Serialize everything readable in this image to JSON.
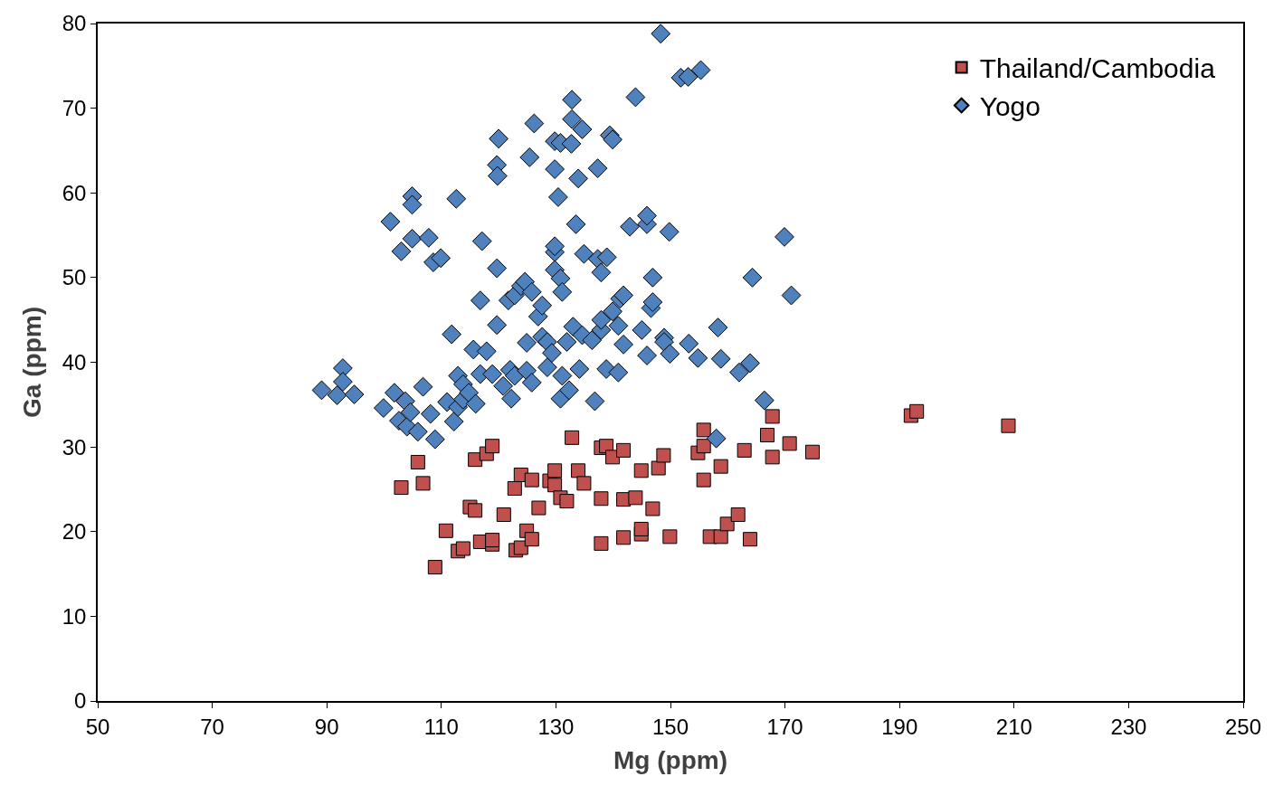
{
  "chart_data": {
    "type": "scatter",
    "xlabel": "Mg (ppm)",
    "ylabel": "Ga (ppm)",
    "xlim": [
      50,
      250
    ],
    "xticks": [
      50,
      70,
      90,
      110,
      130,
      150,
      170,
      190,
      210,
      230,
      250
    ],
    "ylim": [
      0,
      80
    ],
    "yticks": [
      0,
      10,
      20,
      30,
      40,
      50,
      60,
      70,
      80
    ],
    "legend": "top right",
    "series": [
      {
        "name": "Thailand/Cambodia",
        "color": "#c0504d",
        "marker": "square",
        "x": [
          103.0,
          105.9,
          106.8,
          108.9,
          110.8,
          112.9,
          113.8,
          115.0,
          115.9,
          115.9,
          116.8,
          117.9,
          118.9,
          118.9,
          118.9,
          120.9,
          122.8,
          123.0,
          123.9,
          123.9,
          124.9,
          125.8,
          125.8,
          127.0,
          128.9,
          129.8,
          129.8,
          130.8,
          131.9,
          132.8,
          133.9,
          134.9,
          137.9,
          138.8,
          137.9,
          137.9,
          139.9,
          141.8,
          141.8,
          141.8,
          143.9,
          144.9,
          144.9,
          144.9,
          146.9,
          147.9,
          148.8,
          149.9,
          154.8,
          155.8,
          155.8,
          155.8,
          156.9,
          158.8,
          158.8,
          159.9,
          161.8,
          162.9,
          163.9,
          166.9,
          167.8,
          167.8,
          170.8,
          174.8,
          192.0,
          193.0,
          209.0
        ],
        "values": [
          25.2,
          28.2,
          25.7,
          15.8,
          20.1,
          17.7,
          18.0,
          22.9,
          22.5,
          28.5,
          18.8,
          29.2,
          30.1,
          18.5,
          19.0,
          22.0,
          25.1,
          17.8,
          26.7,
          18.1,
          20.1,
          19.1,
          26.1,
          22.8,
          26.0,
          27.2,
          25.5,
          24.0,
          23.6,
          31.1,
          27.2,
          25.7,
          29.9,
          30.1,
          18.6,
          23.9,
          28.8,
          29.6,
          19.3,
          23.8,
          24.0,
          27.2,
          19.7,
          20.3,
          22.7,
          27.5,
          29.0,
          19.4,
          29.3,
          30.1,
          26.1,
          32.0,
          19.4,
          19.4,
          27.7,
          20.9,
          22.0,
          29.6,
          19.1,
          31.4,
          33.6,
          28.8,
          30.4,
          29.4,
          33.7,
          34.2,
          32.5
        ]
      },
      {
        "name": "Yogo",
        "color": "#4f81bd",
        "marker": "diamond",
        "x": [
          89.1,
          91.8,
          92.8,
          92.8,
          94.8,
          99.9,
          101.1,
          101.8,
          102.6,
          103.0,
          103.7,
          104.0,
          104.6,
          104.9,
          104.9,
          104.9,
          105.9,
          106.8,
          107.8,
          108.1,
          108.6,
          108.9,
          109.9,
          111.0,
          111.8,
          112.2,
          112.6,
          112.9,
          112.9,
          113.8,
          113.8,
          114.8,
          115.6,
          116.0,
          116.8,
          117.1,
          116.8,
          117.9,
          118.9,
          119.7,
          119.7,
          119.7,
          119.8,
          120.0,
          120.8,
          122.0,
          121.7,
          122.2,
          122.8,
          122.8,
          123.9,
          124.6,
          124.9,
          124.9,
          125.4,
          125.8,
          125.8,
          126.2,
          126.9,
          127.6,
          127.6,
          128.5,
          128.5,
          129.3,
          129.8,
          129.8,
          129.8,
          129.8,
          129.8,
          130.4,
          130.8,
          130.8,
          130.8,
          131.1,
          131.1,
          131.9,
          132.3,
          132.7,
          132.8,
          132.8,
          133.0,
          133.5,
          133.9,
          134.1,
          134.6,
          134.6,
          134.9,
          136.3,
          136.8,
          137.3,
          137.3,
          137.9,
          137.9,
          137.9,
          138.8,
          138.9,
          139.4,
          139.9,
          139.9,
          140.9,
          140.9,
          141.2,
          141.8,
          141.8,
          142.9,
          143.9,
          145.0,
          145.9,
          145.9,
          145.9,
          146.6,
          146.9,
          146.9,
          148.3,
          148.9,
          148.9,
          149.8,
          149.9,
          151.8,
          153.1,
          153.2,
          154.8,
          155.3,
          158.0,
          158.3,
          158.8,
          162.0,
          163.9,
          164.3,
          166.4,
          169.9,
          171.1
        ],
        "values": [
          36.7,
          36.1,
          39.3,
          37.7,
          36.2,
          34.6,
          56.6,
          36.4,
          33.1,
          53.1,
          35.4,
          32.4,
          34.1,
          59.6,
          58.6,
          54.6,
          31.8,
          37.1,
          54.7,
          33.9,
          51.8,
          30.9,
          52.3,
          35.3,
          43.3,
          33.0,
          59.3,
          38.4,
          34.7,
          37.4,
          35.6,
          36.4,
          41.5,
          35.1,
          47.3,
          54.3,
          38.6,
          41.3,
          38.6,
          44.4,
          51.1,
          63.3,
          62.0,
          66.4,
          37.2,
          39.1,
          47.3,
          35.7,
          47.9,
          38.4,
          49.0,
          49.5,
          42.3,
          39.0,
          64.2,
          48.3,
          37.6,
          68.2,
          45.4,
          46.7,
          43.0,
          42.4,
          39.4,
          41.1,
          53.0,
          53.7,
          50.9,
          62.8,
          66.1,
          59.5,
          49.9,
          65.9,
          35.7,
          48.3,
          38.4,
          42.4,
          36.7,
          65.8,
          71.0,
          68.7,
          44.2,
          56.3,
          61.7,
          39.2,
          67.5,
          43.2,
          52.8,
          42.6,
          35.4,
          62.9,
          52.2,
          50.6,
          43.8,
          45.0,
          39.2,
          52.4,
          66.8,
          66.3,
          46.0,
          44.3,
          38.8,
          47.5,
          47.9,
          42.1,
          56.0,
          71.3,
          43.8,
          56.3,
          57.3,
          40.8,
          46.4,
          50.0,
          47.1,
          78.8,
          42.9,
          42.4,
          55.4,
          41.0,
          73.6,
          73.7,
          42.2,
          40.5,
          74.5,
          31.0,
          44.1,
          40.4,
          38.8,
          39.9,
          50.0,
          35.5,
          54.8,
          47.9
        ]
      }
    ]
  }
}
